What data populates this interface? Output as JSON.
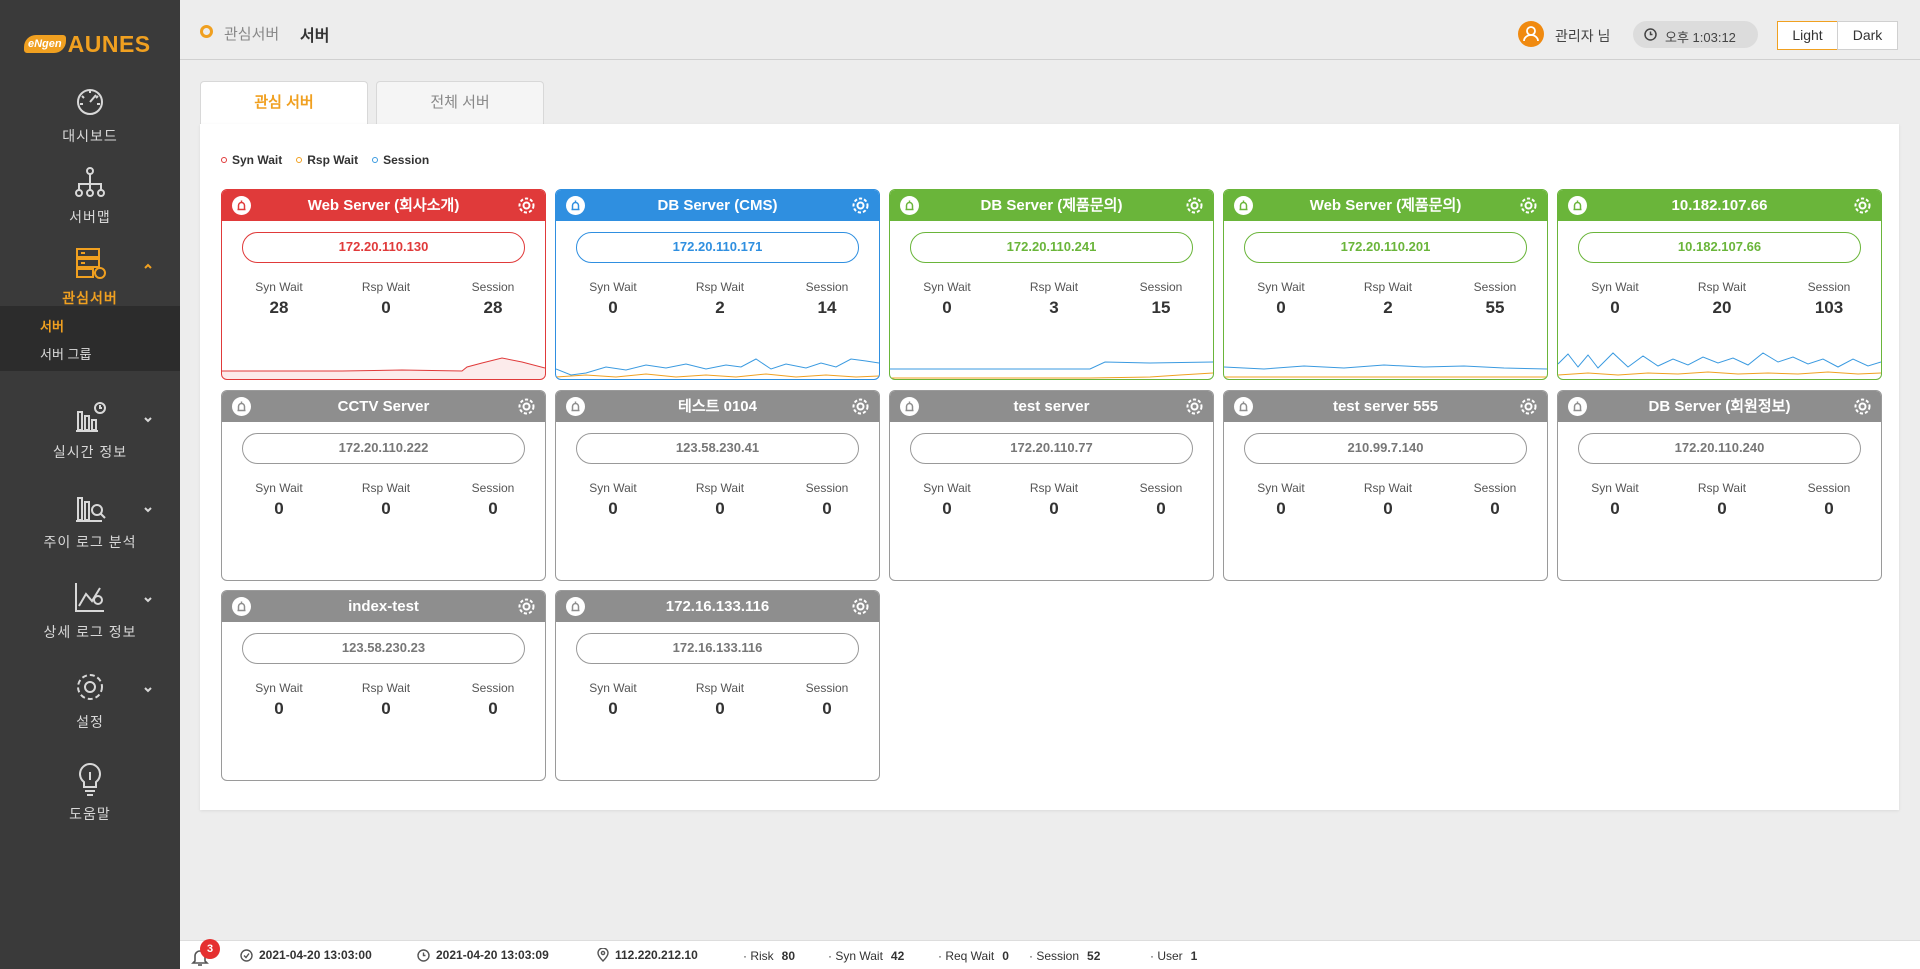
{
  "logo": {
    "badge": "eNgen",
    "text": "AUNES"
  },
  "sidebar": {
    "items": [
      {
        "label": "대시보드",
        "icon": "gauge-icon"
      },
      {
        "label": "서버맵",
        "icon": "network-icon"
      },
      {
        "label": "관심서버",
        "icon": "server-icon",
        "active": true
      },
      {
        "label": "실시간 정보",
        "icon": "realtime-chart-icon"
      },
      {
        "label": "주이 로그 분석",
        "icon": "log-analysis-icon"
      },
      {
        "label": "상세 로그 정보",
        "icon": "detail-log-icon"
      },
      {
        "label": "설정",
        "icon": "gear-icon"
      },
      {
        "label": "도움말",
        "icon": "lightbulb-icon"
      }
    ],
    "submenu": [
      {
        "label": "서버",
        "active": true
      },
      {
        "label": "서버 그룹"
      }
    ]
  },
  "header": {
    "breadcrumb": [
      "관심서버",
      "서버"
    ],
    "user": "관리자 님",
    "clock": "오후 1:03:12",
    "theme_light": "Light",
    "theme_dark": "Dark"
  },
  "tabs": [
    {
      "label": "관심 서버",
      "active": true
    },
    {
      "label": "전체 서버"
    }
  ],
  "legend": [
    "Syn Wait",
    "Rsp Wait",
    "Session"
  ],
  "colors": {
    "accent": "#f0a020",
    "red": "#e03a3a",
    "blue": "#2f8fe0",
    "green": "#6ab53a",
    "gray": "#8e8e8e",
    "syn": "#e03a3a",
    "rsp": "#f0a020",
    "session": "#3a9ae0"
  },
  "metric_labels": [
    "Syn Wait",
    "Rsp Wait",
    "Session"
  ],
  "cards": [
    {
      "title": "Web Server (회사소개)",
      "ip": "172.20.110.130",
      "status": "red",
      "syn": "28",
      "rsp": "0",
      "session": "28",
      "spark": "red"
    },
    {
      "title": "DB Server (CMS)",
      "ip": "172.20.110.171",
      "status": "blue",
      "syn": "0",
      "rsp": "2",
      "session": "14",
      "spark": "blue"
    },
    {
      "title": "DB Server (제품문의)",
      "ip": "172.20.110.241",
      "status": "green",
      "syn": "0",
      "rsp": "3",
      "session": "15",
      "spark": "green1"
    },
    {
      "title": "Web Server (제품문의)",
      "ip": "172.20.110.201",
      "status": "green",
      "syn": "0",
      "rsp": "2",
      "session": "55",
      "spark": "green2"
    },
    {
      "title": "10.182.107.66",
      "ip": "10.182.107.66",
      "status": "green",
      "syn": "0",
      "rsp": "20",
      "session": "103",
      "spark": "green3"
    },
    {
      "title": "CCTV Server",
      "ip": "172.20.110.222",
      "status": "gray",
      "syn": "0",
      "rsp": "0",
      "session": "0"
    },
    {
      "title": "테스트 0104",
      "ip": "123.58.230.41",
      "status": "gray",
      "syn": "0",
      "rsp": "0",
      "session": "0"
    },
    {
      "title": "test server",
      "ip": "172.20.110.77",
      "status": "gray",
      "syn": "0",
      "rsp": "0",
      "session": "0"
    },
    {
      "title": "test server 555",
      "ip": "210.99.7.140",
      "status": "gray",
      "syn": "0",
      "rsp": "0",
      "session": "0"
    },
    {
      "title": "DB Server (회원정보)",
      "ip": "172.20.110.240",
      "status": "gray",
      "syn": "0",
      "rsp": "0",
      "session": "0"
    },
    {
      "title": "index-test",
      "ip": "123.58.230.23",
      "status": "gray",
      "syn": "0",
      "rsp": "0",
      "session": "0"
    },
    {
      "title": "172.16.133.116",
      "ip": "172.16.133.116",
      "status": "gray",
      "syn": "0",
      "rsp": "0",
      "session": "0"
    }
  ],
  "statusbar": {
    "notifications": "3",
    "time1": "2021-04-20 13:03:00",
    "time2": "2021-04-20 13:03:09",
    "ip": "112.220.212.10",
    "risk_label": "· Risk",
    "risk": "80",
    "syn_label": "· Syn Wait",
    "syn": "42",
    "req_label": "· Req Wait",
    "req": "0",
    "session_label": "· Session",
    "session": "52",
    "user_label": "· User",
    "user": "1"
  }
}
